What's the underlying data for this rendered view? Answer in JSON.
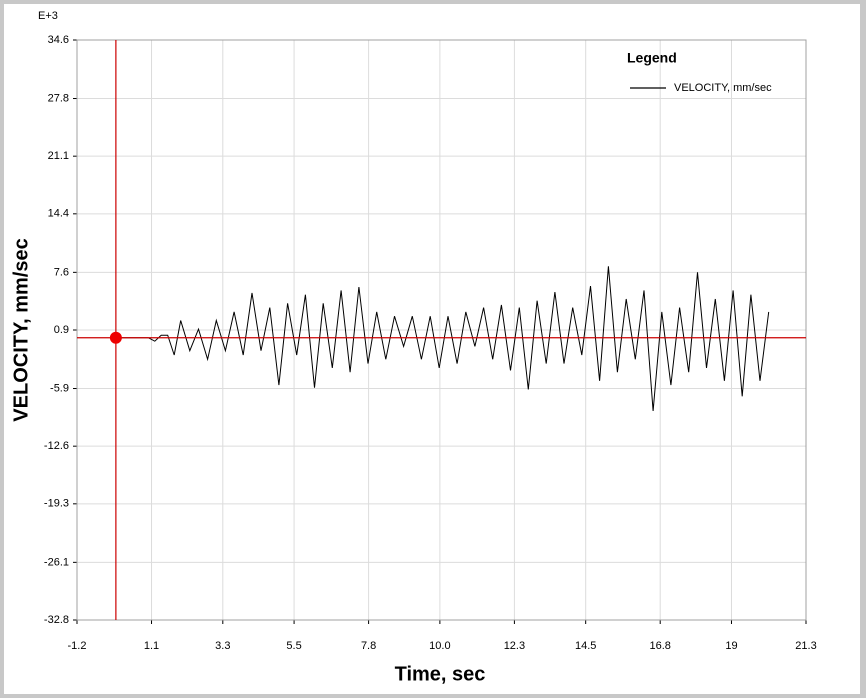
{
  "chart_data": {
    "type": "line",
    "exponent_label": "E+3",
    "xlabel": "Time,  sec",
    "ylabel": "VELOCITY,  mm/sec",
    "legend_title": "Legend",
    "legend": "top-right",
    "grid": true,
    "xlim": [
      -1.2,
      21.3
    ],
    "xticks": [
      -1.2,
      1.1,
      3.3,
      5.5,
      7.8,
      {
        "value": 10,
        "label": "10.0"
      },
      12.3,
      14.5,
      16.8,
      19,
      21.3
    ],
    "ylim": [
      -32.8,
      34.6
    ],
    "yticks": [
      34.6,
      27.8,
      21.1,
      14.4,
      7.6,
      0.9,
      -5.9,
      -12.6,
      -19.3,
      -26.1,
      -32.8
    ],
    "cursor": {
      "x": 0,
      "y": 0,
      "color": "#cc0000"
    },
    "series": [
      {
        "name": "VELOCITY, mm/sec",
        "color": "#000000",
        "x": [
          0,
          0.5,
          1.0,
          1.2,
          1.4,
          1.6,
          1.8,
          2.0,
          2.28,
          2.55,
          2.83,
          3.1,
          3.38,
          3.65,
          3.93,
          4.2,
          4.48,
          4.75,
          5.03,
          5.3,
          5.58,
          5.85,
          6.13,
          6.4,
          6.68,
          6.95,
          7.23,
          7.5,
          7.78,
          8.05,
          8.33,
          8.6,
          8.88,
          9.15,
          9.43,
          9.7,
          9.98,
          10.25,
          10.53,
          10.8,
          11.08,
          11.35,
          11.63,
          11.9,
          12.18,
          12.45,
          12.73,
          13.0,
          13.28,
          13.55,
          13.83,
          14.1,
          14.38,
          14.65,
          14.93,
          15.2,
          15.48,
          15.75,
          16.03,
          16.3,
          16.58,
          16.85,
          17.13,
          17.4,
          17.68,
          17.95,
          18.23,
          18.5,
          18.78,
          19.05,
          19.33,
          19.6,
          19.88,
          20.15
        ],
        "values": [
          0,
          0,
          0,
          -0.4,
          0.3,
          0.3,
          -2.0,
          2.0,
          -1.5,
          1.0,
          -2.5,
          2.0,
          -1.5,
          3.0,
          -2.0,
          5.2,
          -1.5,
          3.5,
          -5.5,
          4.0,
          -2.0,
          5.0,
          -5.8,
          4.0,
          -3.5,
          5.5,
          -4.0,
          5.9,
          -3.0,
          3.0,
          -2.5,
          2.5,
          -1.0,
          2.5,
          -2.5,
          2.5,
          -3.5,
          2.5,
          -3.0,
          3.0,
          -1.0,
          3.5,
          -2.5,
          3.8,
          -3.8,
          3.5,
          -6.0,
          4.3,
          -3.0,
          5.3,
          -3.0,
          3.5,
          -2.0,
          6.0,
          -5.0,
          8.3,
          -4.0,
          4.5,
          -2.5,
          5.5,
          -8.5,
          3.0,
          -5.5,
          3.5,
          -4.0,
          7.6,
          -3.5,
          4.5,
          -5.0,
          5.5,
          -6.8,
          5.0,
          -5.0,
          3.0
        ]
      }
    ]
  }
}
